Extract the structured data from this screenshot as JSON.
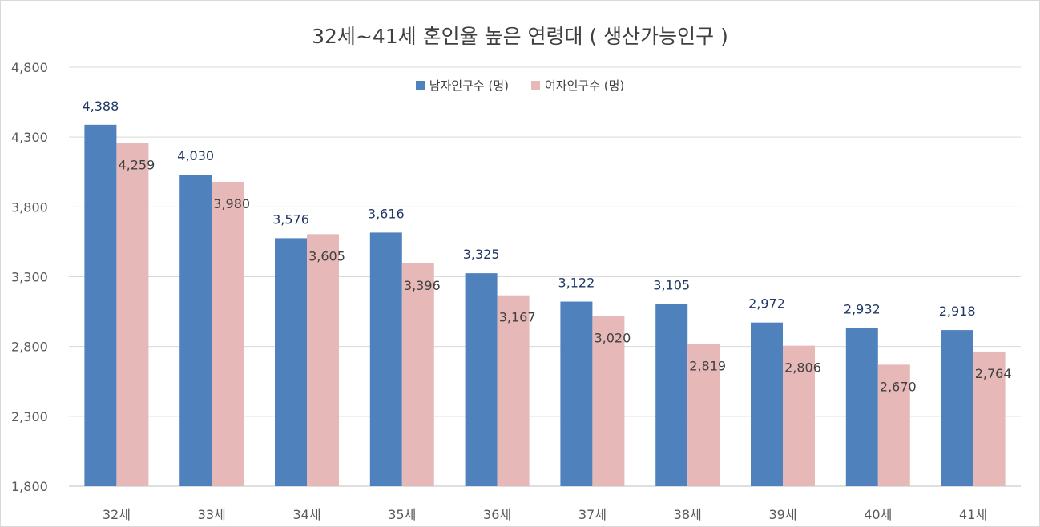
{
  "chart_data": {
    "type": "bar",
    "title": "32세~41세 혼인율 높은 연령대 ( 생산가능인구 )",
    "categories": [
      "32세",
      "33세",
      "34세",
      "35세",
      "36세",
      "37세",
      "38세",
      "39세",
      "40세",
      "41세"
    ],
    "series": [
      {
        "name": "남자인구수 (명)",
        "color": "#4f81bd",
        "values": [
          4388,
          4030,
          3576,
          3616,
          3325,
          3122,
          3105,
          2972,
          2932,
          2918
        ],
        "labels": [
          "4,388",
          "4,030",
          "3,576",
          "3,616",
          "3,325",
          "3,122",
          "3,105",
          "2,972",
          "2,932",
          "2,918"
        ]
      },
      {
        "name": "여자인구수 (명)",
        "color": "#e6b9b8",
        "values": [
          4259,
          3980,
          3605,
          3396,
          3167,
          3020,
          2819,
          2806,
          2670,
          2764
        ],
        "labels": [
          "4,259",
          "3,980",
          "3,605",
          "3,396",
          "3,167",
          "3,020",
          "2,819",
          "2,806",
          "2,670",
          "2,764"
        ]
      }
    ],
    "ylim": [
      1800,
      4800
    ],
    "yticks": [
      1800,
      2300,
      2800,
      3300,
      3800,
      4300,
      4800
    ],
    "ytick_labels": [
      "1,800",
      "2,300",
      "2,800",
      "3,300",
      "3,800",
      "4,300",
      "4,800"
    ],
    "grid": true,
    "legend_position": "top-center",
    "xlabel": "",
    "ylabel": ""
  }
}
